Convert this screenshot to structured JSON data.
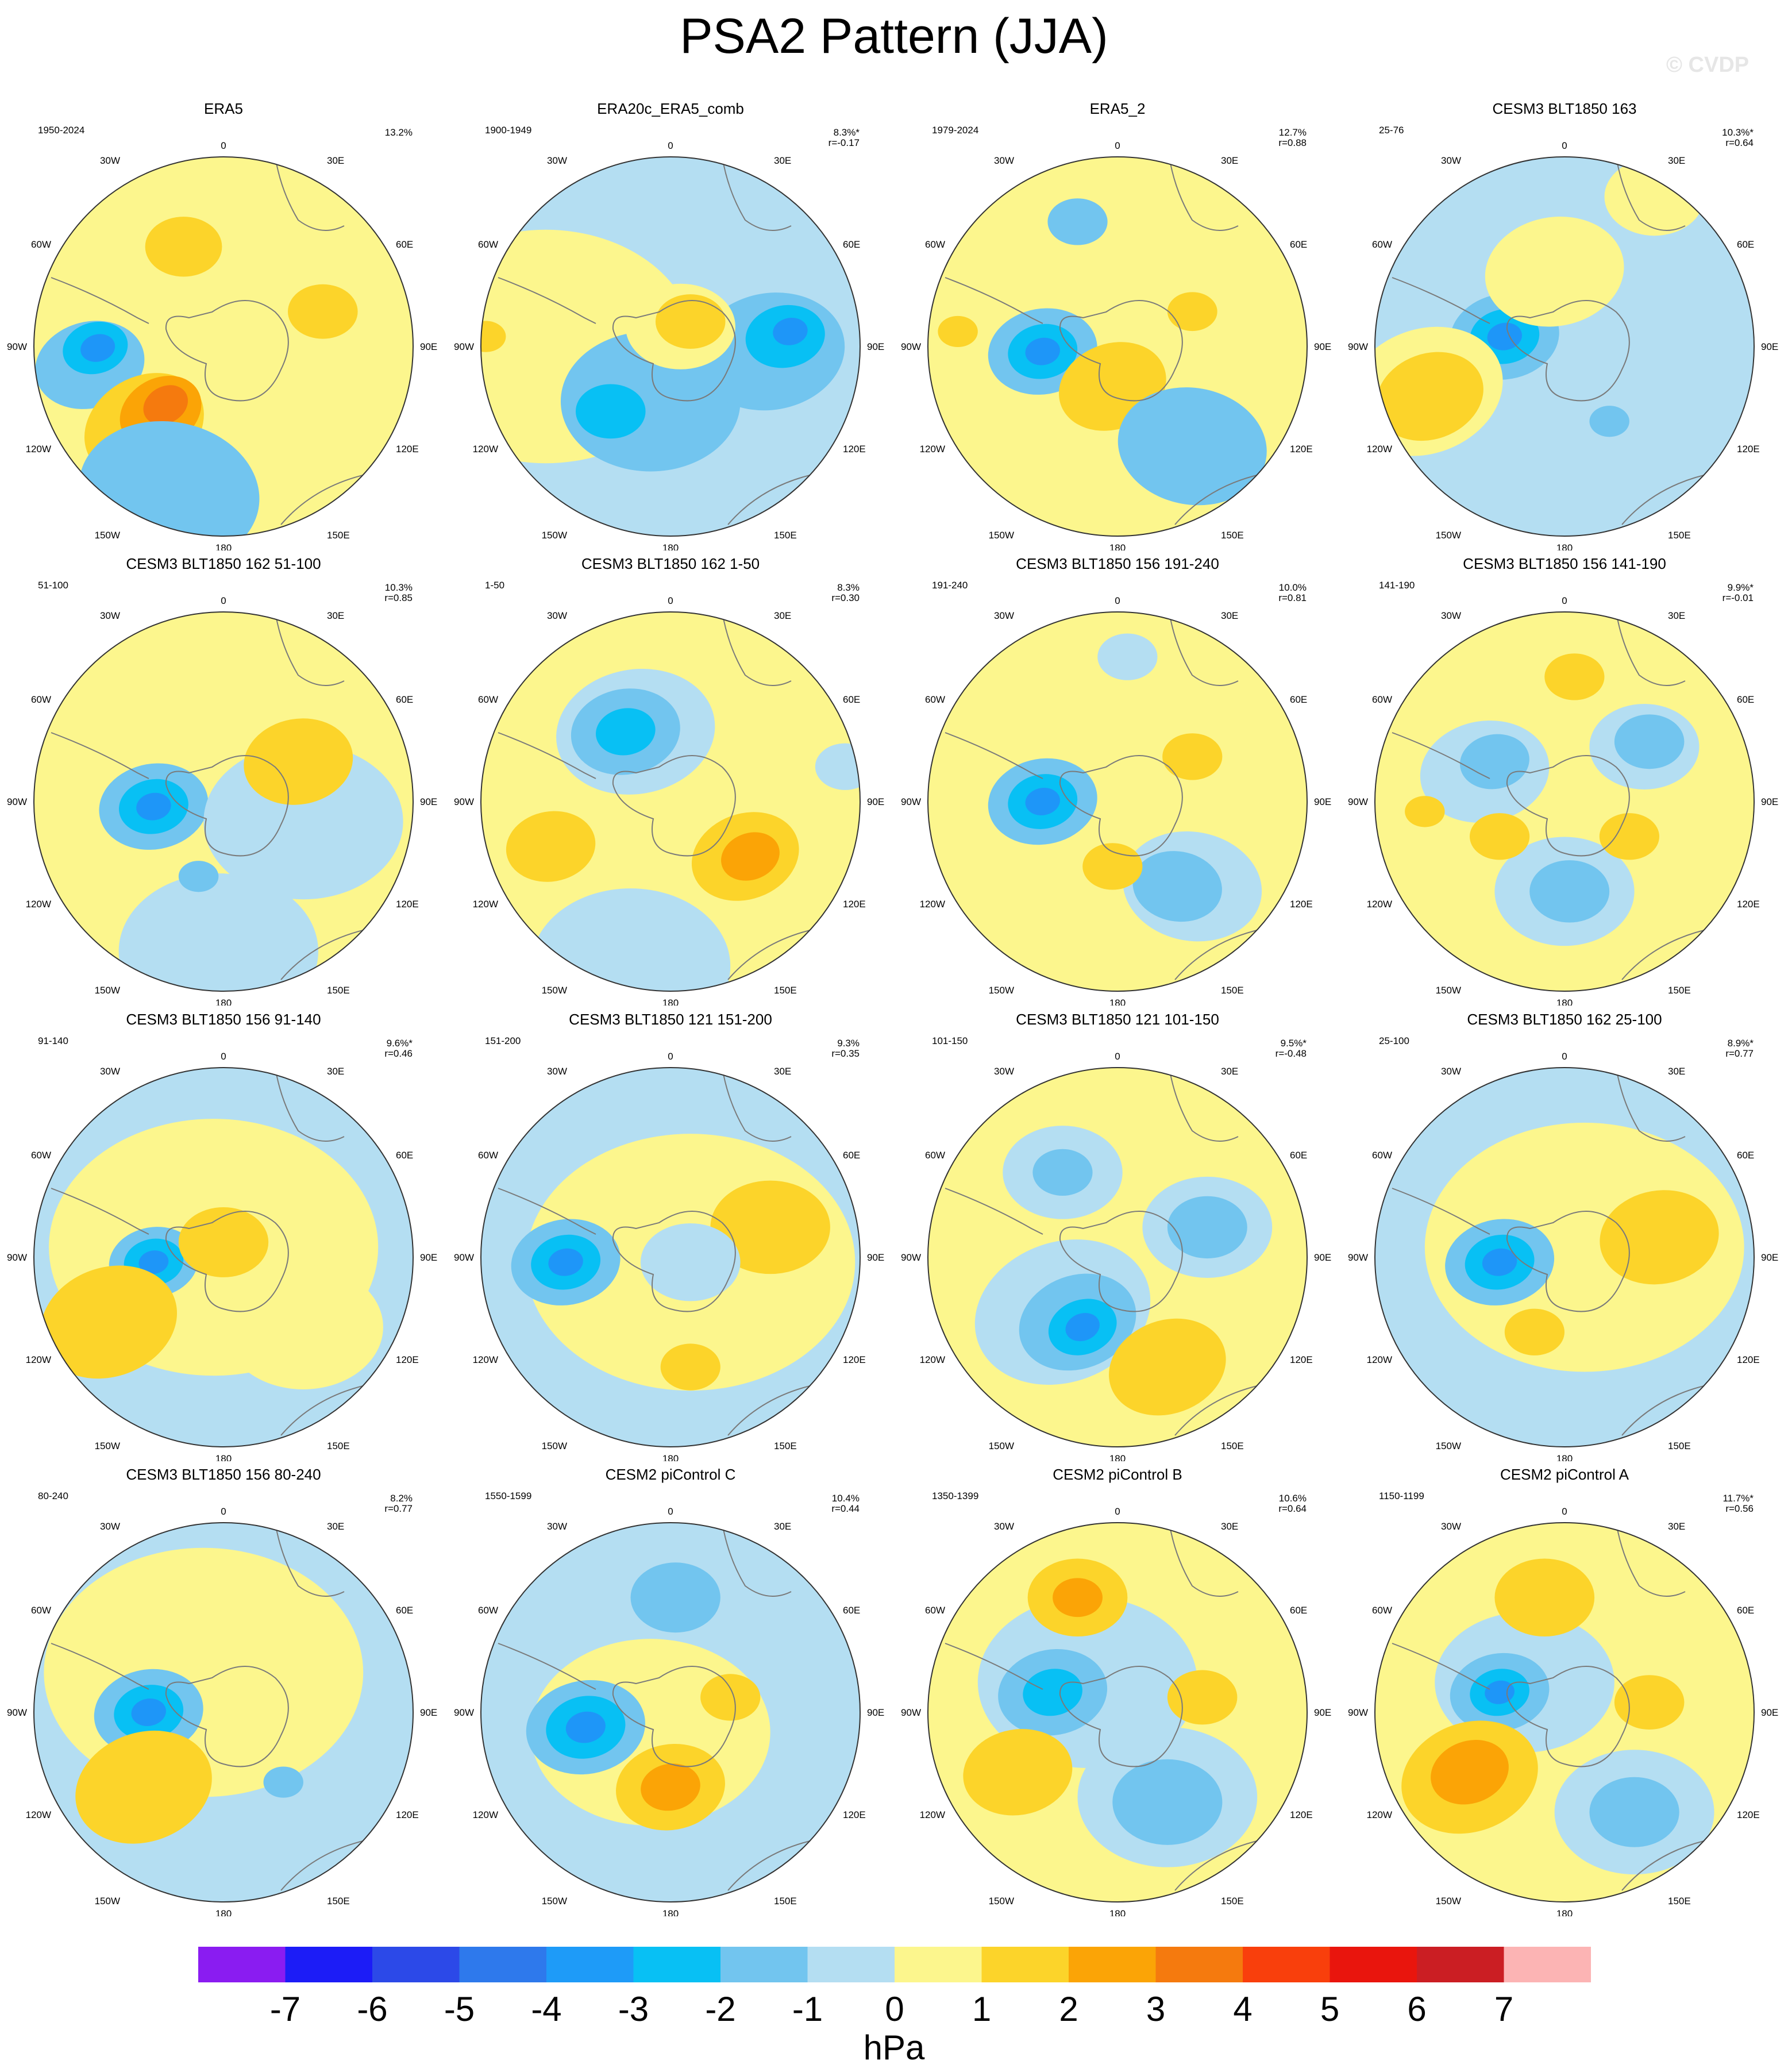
{
  "title": "PSA2 Pattern (JJA)",
  "watermark": "© CVDP",
  "longitude_labels": {
    "top": "0",
    "bottom": "180",
    "left_upper": "30W",
    "left_mid_upper": "60W",
    "left_mid": "90W",
    "left_mid_lower": "120W",
    "left_lower": "150W",
    "right_upper": "30E",
    "right_mid_upper": "60E",
    "right_mid": "90E",
    "right_mid_lower": "120E",
    "right_lower": "150E"
  },
  "colors": {
    "ocean_bg": "#b4def2",
    "land_line": "#7a7a7a",
    "border": "#333333",
    "neg1": "#b4def2",
    "neg2": "#72c5ef",
    "neg3": "#08c0f4",
    "neg4": "#1e96f8",
    "neg5": "#2c58e5",
    "pos1": "#fcf68d",
    "pos2": "#fcd42a",
    "pos3": "#fba406",
    "pos4": "#f57a0e",
    "pos5": "#f93f0c"
  },
  "panels": [
    {
      "title": "ERA5",
      "years": "1950-2024",
      "pct": "13.2%",
      "r": "",
      "blobs": [
        [
          "pos1",
          0,
          0,
          760,
          0
        ],
        [
          "neg2",
          -268,
          -37,
          111,
          -15
        ],
        [
          "neg3",
          -257,
          -3,
          66,
          -15
        ],
        [
          "neg4",
          -252,
          -3,
          35,
          -15
        ],
        [
          "pos2",
          -159,
          -159,
          126,
          -30
        ],
        [
          "pos3",
          -126,
          -131,
          86,
          -30
        ],
        [
          "pos4",
          -116,
          -117,
          47,
          -30
        ],
        [
          "neg2",
          -109,
          -293,
          182,
          10
        ],
        [
          "pos2",
          -80,
          200,
          77,
          0
        ],
        [
          "pos2",
          199,
          70,
          70,
          0
        ]
      ]
    },
    {
      "title": "ERA20c_ERA5_comb",
      "years": "1900-1949",
      "pct": "8.3%*",
      "r": "r=-0.17",
      "blobs": [
        [
          "neg1",
          0,
          0,
          760,
          0
        ],
        [
          "pos1",
          -250,
          0,
          300,
          0
        ],
        [
          "neg2",
          -40,
          -110,
          180,
          0
        ],
        [
          "neg2",
          200,
          -10,
          150,
          -10
        ],
        [
          "neg3",
          230,
          20,
          80,
          -10
        ],
        [
          "neg4",
          240,
          30,
          35,
          -10
        ],
        [
          "neg3",
          -120,
          -130,
          70,
          0
        ],
        [
          "pos1",
          20,
          40,
          110,
          0
        ],
        [
          "pos2",
          40,
          50,
          70,
          0
        ],
        [
          "pos2",
          -370,
          20,
          40,
          0
        ]
      ]
    },
    {
      "title": "ERA5_2",
      "years": "1979-2024",
      "pct": "12.7%",
      "r": "r=0.88",
      "blobs": [
        [
          "pos1",
          0,
          0,
          760,
          0
        ],
        [
          "neg2",
          -150,
          -10,
          110,
          -10
        ],
        [
          "neg3",
          -150,
          -10,
          70,
          -10
        ],
        [
          "neg4",
          -150,
          -10,
          35,
          -10
        ],
        [
          "pos2",
          -10,
          -80,
          110,
          -20
        ],
        [
          "pos2",
          150,
          70,
          50,
          0
        ],
        [
          "neg2",
          150,
          -200,
          150,
          10
        ],
        [
          "neg2",
          -80,
          250,
          60,
          0
        ],
        [
          "pos2",
          -320,
          30,
          40,
          0
        ]
      ]
    },
    {
      "title": "CESM3 BLT1850 163",
      "years": "25-76",
      "pct": "10.3%*",
      "r": "r=0.64",
      "blobs": [
        [
          "neg1",
          0,
          0,
          760,
          0
        ],
        [
          "neg2",
          -120,
          20,
          110,
          -10
        ],
        [
          "neg3",
          -120,
          20,
          70,
          -10
        ],
        [
          "neg4",
          -120,
          20,
          35,
          -10
        ],
        [
          "pos1",
          -280,
          -90,
          160,
          -20
        ],
        [
          "pos2",
          -270,
          -100,
          110,
          -20
        ],
        [
          "pos1",
          -20,
          150,
          140,
          -10
        ],
        [
          "pos1",
          180,
          300,
          100,
          0
        ],
        [
          "neg2",
          90,
          -150,
          40,
          0
        ]
      ]
    },
    {
      "title": "CESM3 BLT1850 162 51-100",
      "years": "51-100",
      "pct": "10.3%",
      "r": "r=0.85",
      "blobs": [
        [
          "pos1",
          0,
          0,
          760,
          0
        ],
        [
          "neg2",
          -140,
          -10,
          110,
          -10
        ],
        [
          "neg3",
          -140,
          -10,
          70,
          -10
        ],
        [
          "neg4",
          -140,
          -10,
          35,
          -10
        ],
        [
          "neg1",
          160,
          -40,
          200,
          0
        ],
        [
          "pos2",
          150,
          80,
          110,
          -10
        ],
        [
          "neg1",
          -10,
          -300,
          200,
          0
        ],
        [
          "neg2",
          -50,
          -150,
          40,
          0
        ]
      ]
    },
    {
      "title": "CESM3 BLT1850 162 1-50",
      "years": "1-50",
      "pct": "8.3%",
      "r": "r=0.30",
      "blobs": [
        [
          "pos1",
          0,
          0,
          760,
          0
        ],
        [
          "neg1",
          -70,
          140,
          160,
          -10
        ],
        [
          "neg2",
          -90,
          140,
          110,
          -10
        ],
        [
          "neg3",
          -90,
          140,
          60,
          -10
        ],
        [
          "neg1",
          -80,
          -330,
          200,
          0
        ],
        [
          "pos2",
          150,
          -110,
          110,
          -20
        ],
        [
          "pos3",
          160,
          -110,
          60,
          -20
        ],
        [
          "pos2",
          -240,
          -90,
          90,
          -10
        ],
        [
          "neg1",
          350,
          70,
          60,
          0
        ]
      ]
    },
    {
      "title": "CESM3 BLT1850 156 191-240",
      "years": "191-240",
      "pct": "10.0%",
      "r": "r=0.81",
      "blobs": [
        [
          "pos1",
          0,
          0,
          760,
          0
        ],
        [
          "neg2",
          -150,
          0,
          110,
          -10
        ],
        [
          "neg3",
          -150,
          0,
          70,
          -10
        ],
        [
          "neg4",
          -150,
          0,
          35,
          -10
        ],
        [
          "neg1",
          150,
          -170,
          140,
          10
        ],
        [
          "neg2",
          120,
          -170,
          90,
          10
        ],
        [
          "pos2",
          150,
          90,
          60,
          0
        ],
        [
          "pos2",
          -10,
          -130,
          60,
          0
        ],
        [
          "neg1",
          20,
          290,
          60,
          0
        ]
      ]
    },
    {
      "title": "CESM3 BLT1850 156 141-190",
      "years": "141-190",
      "pct": "9.9%*",
      "r": "r=-0.01",
      "blobs": [
        [
          "pos1",
          0,
          0,
          760,
          0
        ],
        [
          "neg1",
          -160,
          60,
          130,
          -10
        ],
        [
          "neg2",
          -140,
          80,
          70,
          -10
        ],
        [
          "neg1",
          160,
          110,
          110,
          0
        ],
        [
          "neg2",
          170,
          120,
          70,
          0
        ],
        [
          "neg1",
          0,
          -180,
          140,
          0
        ],
        [
          "neg2",
          10,
          -180,
          80,
          0
        ],
        [
          "pos2",
          -280,
          -20,
          40,
          0
        ],
        [
          "pos2",
          -130,
          -70,
          60,
          0
        ],
        [
          "pos2",
          130,
          -70,
          60,
          0
        ],
        [
          "pos2",
          20,
          250,
          60,
          0
        ]
      ]
    },
    {
      "title": "CESM3 BLT1850 156 91-140",
      "years": "91-140",
      "pct": "9.6%*",
      "r": "r=0.46",
      "blobs": [
        [
          "neg1",
          0,
          0,
          760,
          0
        ],
        [
          "pos1",
          -20,
          20,
          330,
          0
        ],
        [
          "neg2",
          -140,
          -10,
          90,
          -10
        ],
        [
          "neg3",
          -140,
          -10,
          60,
          -10
        ],
        [
          "neg4",
          -140,
          -10,
          30,
          -10
        ],
        [
          "pos2",
          0,
          30,
          90,
          0
        ],
        [
          "pos2",
          -230,
          -130,
          140,
          -20
        ],
        [
          "pos1",
          160,
          -140,
          160,
          0
        ]
      ]
    },
    {
      "title": "CESM3 BLT1850 121 151-200",
      "years": "151-200",
      "pct": "9.3%",
      "r": "r=0.35",
      "blobs": [
        [
          "neg1",
          0,
          0,
          760,
          0
        ],
        [
          "pos1",
          40,
          -10,
          330,
          0
        ],
        [
          "neg2",
          -210,
          -10,
          110,
          -10
        ],
        [
          "neg3",
          -210,
          -10,
          70,
          -10
        ],
        [
          "neg4",
          -210,
          -10,
          35,
          -10
        ],
        [
          "pos2",
          200,
          60,
          120,
          0
        ],
        [
          "pos2",
          40,
          -220,
          60,
          0
        ],
        [
          "neg1",
          40,
          -10,
          100,
          0
        ]
      ]
    },
    {
      "title": "CESM3 BLT1850 121 101-150",
      "years": "101-150",
      "pct": "9.5%*",
      "r": "r=-0.48",
      "blobs": [
        [
          "pos1",
          0,
          0,
          760,
          0
        ],
        [
          "neg1",
          -110,
          -110,
          180,
          -20
        ],
        [
          "neg2",
          -80,
          -130,
          120,
          -20
        ],
        [
          "neg3",
          -70,
          -140,
          70,
          -20
        ],
        [
          "neg4",
          -70,
          -140,
          35,
          -20
        ],
        [
          "neg1",
          -110,
          170,
          120,
          0
        ],
        [
          "neg2",
          -110,
          170,
          60,
          0
        ],
        [
          "neg1",
          180,
          60,
          130,
          0
        ],
        [
          "neg2",
          180,
          60,
          80,
          0
        ],
        [
          "pos2",
          100,
          -220,
          120,
          -20
        ]
      ]
    },
    {
      "title": "CESM3 BLT1850 162 25-100",
      "years": "25-100",
      "pct": "8.9%*",
      "r": "r=0.77",
      "blobs": [
        [
          "neg1",
          0,
          0,
          760,
          0
        ],
        [
          "pos1",
          40,
          20,
          320,
          0
        ],
        [
          "neg2",
          -130,
          -10,
          110,
          -10
        ],
        [
          "neg3",
          -130,
          -10,
          70,
          -10
        ],
        [
          "neg4",
          -130,
          -10,
          35,
          -10
        ],
        [
          "pos2",
          190,
          40,
          120,
          -10
        ],
        [
          "pos2",
          -60,
          -150,
          60,
          0
        ]
      ]
    },
    {
      "title": "CESM3 BLT1850 156 80-240",
      "years": "80-240",
      "pct": "8.2%",
      "r": "r=0.77",
      "blobs": [
        [
          "neg1",
          0,
          0,
          760,
          0
        ],
        [
          "pos1",
          -40,
          80,
          320,
          0
        ],
        [
          "neg2",
          -150,
          0,
          110,
          -10
        ],
        [
          "neg3",
          -150,
          0,
          70,
          -10
        ],
        [
          "neg4",
          -150,
          0,
          35,
          -10
        ],
        [
          "pos2",
          -160,
          -150,
          140,
          -20
        ],
        [
          "neg2",
          120,
          -140,
          40,
          0
        ]
      ]
    },
    {
      "title": "CESM2 piControl C",
      "years": "1550-1599",
      "pct": "10.4%",
      "r": "r=0.44",
      "blobs": [
        [
          "neg1",
          0,
          0,
          760,
          0
        ],
        [
          "pos1",
          -40,
          -40,
          240,
          0
        ],
        [
          "neg2",
          -170,
          -30,
          120,
          -10
        ],
        [
          "neg3",
          -170,
          -30,
          80,
          -10
        ],
        [
          "neg4",
          -170,
          -30,
          40,
          -10
        ],
        [
          "pos2",
          0,
          -150,
          110,
          -10
        ],
        [
          "pos3",
          0,
          -150,
          60,
          -10
        ],
        [
          "neg2",
          10,
          230,
          90,
          0
        ],
        [
          "pos2",
          120,
          30,
          60,
          0
        ]
      ]
    },
    {
      "title": "CESM2 piControl B",
      "years": "1350-1399",
      "pct": "10.6%",
      "r": "r=0.64",
      "blobs": [
        [
          "pos1",
          0,
          0,
          760,
          0
        ],
        [
          "neg1",
          -60,
          60,
          220,
          0
        ],
        [
          "neg2",
          -130,
          40,
          110,
          -10
        ],
        [
          "neg3",
          -130,
          40,
          60,
          -10
        ],
        [
          "pos2",
          -80,
          230,
          100,
          0
        ],
        [
          "pos3",
          -80,
          230,
          50,
          0
        ],
        [
          "pos2",
          -200,
          -120,
          110,
          -10
        ],
        [
          "neg1",
          100,
          -170,
          180,
          0
        ],
        [
          "neg2",
          100,
          -180,
          110,
          0
        ],
        [
          "pos2",
          170,
          30,
          70,
          0
        ]
      ]
    },
    {
      "title": "CESM2 piControl A",
      "years": "1150-1199",
      "pct": "11.7%*",
      "r": "r=0.56",
      "blobs": [
        [
          "pos1",
          0,
          0,
          760,
          0
        ],
        [
          "neg1",
          -80,
          60,
          180,
          0
        ],
        [
          "neg2",
          -130,
          40,
          100,
          -10
        ],
        [
          "neg3",
          -130,
          40,
          60,
          -10
        ],
        [
          "neg4",
          -130,
          40,
          30,
          -10
        ],
        [
          "pos2",
          -40,
          230,
          100,
          0
        ],
        [
          "pos2",
          -190,
          -130,
          140,
          -20
        ],
        [
          "pos3",
          -190,
          -120,
          80,
          -20
        ],
        [
          "neg1",
          140,
          -200,
          160,
          0
        ],
        [
          "neg2",
          140,
          -200,
          90,
          0
        ],
        [
          "pos2",
          170,
          20,
          70,
          0
        ]
      ]
    }
  ],
  "colorbar": {
    "ticks": [
      "-7",
      "-6",
      "-5",
      "-4",
      "-3",
      "-2",
      "-1",
      "0",
      "1",
      "2",
      "3",
      "4",
      "5",
      "6",
      "7"
    ],
    "colors": [
      "#8a1cf1",
      "#1c1cf7",
      "#2c49e8",
      "#2e79ec",
      "#1e9bf8",
      "#08c0f4",
      "#72c5ef",
      "#b4def2",
      "#fcf68d",
      "#fcd42a",
      "#fba406",
      "#f57a0e",
      "#f93f0c",
      "#e9150d",
      "#cb1e23",
      "#fcb4b4"
    ],
    "units": "hPa"
  }
}
